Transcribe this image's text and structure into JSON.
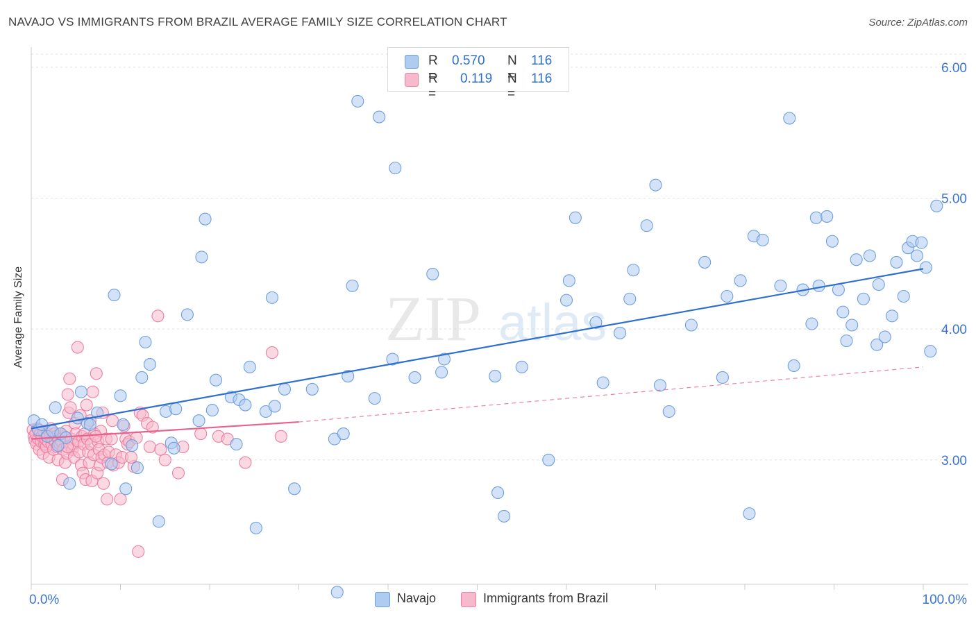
{
  "header": {
    "title": "NAVAJO VS IMMIGRANTS FROM BRAZIL AVERAGE FAMILY SIZE CORRELATION CHART",
    "source": "Source: ZipAtlas.com"
  },
  "legend_top": {
    "rows": [
      {
        "r_label": "R =",
        "r_value": "0.570",
        "n_label": "N =",
        "n_value": "116"
      },
      {
        "r_label": "R =",
        "r_value": "0.119",
        "n_label": "N =",
        "n_value": "116"
      }
    ]
  },
  "legend_bottom": {
    "navajo": "Navajo",
    "brazil": "Immigrants from Brazil"
  },
  "colors": {
    "navajo_fill": "#aecbf0",
    "navajo_stroke": "#6d9fe0",
    "navajo_line": "#2d6fd0",
    "brazil_fill": "#f7b9cc",
    "brazil_stroke": "#ec7fa3",
    "brazil_line": "#e8608e",
    "tick_label": "#3b73d1",
    "grid": "#e0e0e0"
  },
  "chart_data": {
    "type": "scatter",
    "title": "NAVAJO VS IMMIGRANTS FROM BRAZIL AVERAGE FAMILY SIZE CORRELATION CHART",
    "xlabel": "",
    "ylabel": "Average Family Size",
    "xlim": [
      0,
      100
    ],
    "ylim": [
      2.05,
      6.1
    ],
    "x_tick_labels": {
      "0": "0.0%",
      "100": "100.0%"
    },
    "y_ticks": [
      3.0,
      4.0,
      5.0,
      6.0
    ],
    "y_tick_labels": [
      "3.00",
      "4.00",
      "5.00",
      "6.00"
    ],
    "watermark": "ZIPatlas",
    "series": [
      {
        "name": "Navajo",
        "r": 0.57,
        "n": 116,
        "trend": {
          "x": [
            0,
            100
          ],
          "y": [
            3.24,
            4.46
          ]
        },
        "points": [
          [
            0.3,
            3.3
          ],
          [
            0.8,
            3.23
          ],
          [
            1.2,
            3.27
          ],
          [
            1.8,
            3.18
          ],
          [
            2.4,
            3.22
          ],
          [
            2.7,
            3.4
          ],
          [
            3.3,
            3.2
          ],
          [
            3.9,
            3.17
          ],
          [
            4.3,
            2.82
          ],
          [
            5.2,
            3.32
          ],
          [
            5.6,
            3.52
          ],
          [
            6.3,
            3.28
          ],
          [
            6.6,
            3.27
          ],
          [
            7.4,
            3.36
          ],
          [
            9.0,
            2.97
          ],
          [
            9.3,
            4.26
          ],
          [
            10.0,
            3.49
          ],
          [
            10.3,
            3.27
          ],
          [
            10.6,
            2.78
          ],
          [
            11.3,
            3.11
          ],
          [
            11.9,
            2.94
          ],
          [
            12.4,
            3.63
          ],
          [
            12.8,
            3.9
          ],
          [
            13.3,
            3.73
          ],
          [
            14.3,
            2.53
          ],
          [
            15.1,
            3.37
          ],
          [
            15.7,
            3.13
          ],
          [
            16.2,
            3.39
          ],
          [
            17.5,
            4.11
          ],
          [
            18.8,
            3.3
          ],
          [
            19.1,
            4.55
          ],
          [
            19.5,
            4.84
          ],
          [
            20.3,
            3.38
          ],
          [
            20.7,
            3.61
          ],
          [
            22.4,
            3.48
          ],
          [
            23.0,
            3.12
          ],
          [
            23.3,
            3.46
          ],
          [
            24.0,
            3.42
          ],
          [
            24.5,
            3.71
          ],
          [
            25.2,
            2.48
          ],
          [
            26.3,
            3.37
          ],
          [
            27.0,
            4.24
          ],
          [
            27.3,
            3.41
          ],
          [
            28.4,
            3.54
          ],
          [
            29.5,
            2.78
          ],
          [
            31.5,
            3.54
          ],
          [
            34.0,
            3.16
          ],
          [
            34.3,
            1.99
          ],
          [
            35.0,
            3.2
          ],
          [
            35.5,
            3.64
          ],
          [
            36.0,
            4.33
          ],
          [
            36.6,
            5.74
          ],
          [
            38.5,
            3.47
          ],
          [
            39.0,
            5.62
          ],
          [
            40.5,
            3.77
          ],
          [
            40.8,
            5.23
          ],
          [
            43.0,
            3.63
          ],
          [
            45.0,
            4.42
          ],
          [
            46.0,
            3.67
          ],
          [
            46.3,
            3.77
          ],
          [
            52.0,
            3.64
          ],
          [
            52.3,
            2.75
          ],
          [
            53.0,
            2.57
          ],
          [
            55.0,
            3.71
          ],
          [
            58.0,
            3.0
          ],
          [
            60.0,
            4.22
          ],
          [
            60.3,
            4.37
          ],
          [
            61.0,
            4.85
          ],
          [
            63.3,
            4.05
          ],
          [
            64.1,
            3.59
          ],
          [
            66.0,
            3.97
          ],
          [
            67.1,
            4.23
          ],
          [
            67.5,
            4.45
          ],
          [
            69.0,
            4.79
          ],
          [
            70.0,
            5.1
          ],
          [
            70.5,
            3.57
          ],
          [
            71.5,
            3.37
          ],
          [
            74.0,
            4.03
          ],
          [
            75.5,
            4.51
          ],
          [
            77.5,
            3.63
          ],
          [
            78.0,
            4.25
          ],
          [
            79.5,
            4.37
          ],
          [
            80.5,
            2.59
          ],
          [
            81.0,
            4.71
          ],
          [
            82.0,
            4.68
          ],
          [
            84.0,
            4.33
          ],
          [
            85.0,
            5.61
          ],
          [
            85.5,
            3.72
          ],
          [
            86.5,
            4.3
          ],
          [
            87.5,
            4.04
          ],
          [
            88.0,
            4.85
          ],
          [
            88.3,
            4.33
          ],
          [
            89.2,
            4.86
          ],
          [
            89.8,
            4.67
          ],
          [
            90.5,
            4.3
          ],
          [
            91.0,
            4.13
          ],
          [
            91.4,
            3.91
          ],
          [
            92.0,
            4.03
          ],
          [
            92.5,
            4.53
          ],
          [
            93.3,
            4.23
          ],
          [
            94.0,
            4.56
          ],
          [
            94.8,
            3.88
          ],
          [
            95.0,
            4.34
          ],
          [
            95.7,
            3.94
          ],
          [
            96.5,
            4.1
          ],
          [
            97.0,
            4.51
          ],
          [
            97.8,
            4.25
          ],
          [
            98.3,
            4.62
          ],
          [
            98.8,
            4.67
          ],
          [
            99.3,
            4.56
          ],
          [
            99.8,
            4.66
          ],
          [
            100.3,
            4.47
          ],
          [
            100.8,
            3.83
          ],
          [
            101.5,
            4.94
          ],
          [
            3.0,
            3.11
          ],
          [
            16.0,
            3.09
          ]
        ]
      },
      {
        "name": "Immigrants from Brazil",
        "r": 0.119,
        "n": 116,
        "trend": {
          "x": [
            0,
            30
          ],
          "y": [
            3.16,
            3.29
          ],
          "dash_x": [
            30,
            100
          ],
          "dash_y": [
            3.29,
            3.71
          ]
        },
        "points": [
          [
            0.2,
            3.23
          ],
          [
            0.3,
            3.18
          ],
          [
            0.4,
            3.15
          ],
          [
            0.5,
            3.2
          ],
          [
            0.6,
            3.12
          ],
          [
            0.7,
            3.24
          ],
          [
            0.8,
            3.16
          ],
          [
            0.9,
            3.08
          ],
          [
            1.0,
            3.2
          ],
          [
            1.1,
            3.14
          ],
          [
            1.2,
            3.18
          ],
          [
            1.3,
            3.05
          ],
          [
            1.4,
            3.22
          ],
          [
            1.5,
            3.12
          ],
          [
            1.6,
            3.16
          ],
          [
            1.7,
            3.1
          ],
          [
            1.8,
            3.2
          ],
          [
            1.9,
            3.14
          ],
          [
            2.0,
            3.02
          ],
          [
            2.1,
            3.18
          ],
          [
            2.2,
            3.24
          ],
          [
            2.3,
            3.12
          ],
          [
            2.4,
            3.16
          ],
          [
            2.5,
            3.08
          ],
          [
            2.6,
            3.2
          ],
          [
            2.7,
            3.14
          ],
          [
            2.8,
            3.18
          ],
          [
            2.9,
            3.1
          ],
          [
            3.0,
            3.0
          ],
          [
            3.1,
            3.16
          ],
          [
            3.2,
            3.12
          ],
          [
            3.3,
            3.2
          ],
          [
            3.4,
            3.14
          ],
          [
            3.5,
            2.85
          ],
          [
            3.6,
            3.08
          ],
          [
            3.7,
            3.18
          ],
          [
            3.8,
            2.98
          ],
          [
            3.9,
            3.22
          ],
          [
            4.0,
            3.05
          ],
          [
            4.1,
            3.5
          ],
          [
            4.2,
            3.36
          ],
          [
            4.3,
            3.62
          ],
          [
            4.4,
            3.4
          ],
          [
            4.5,
            3.16
          ],
          [
            4.6,
            3.08
          ],
          [
            4.7,
            3.12
          ],
          [
            4.8,
            3.02
          ],
          [
            4.9,
            3.28
          ],
          [
            5.0,
            3.2
          ],
          [
            5.2,
            3.86
          ],
          [
            5.3,
            3.14
          ],
          [
            5.4,
            3.06
          ],
          [
            5.5,
            3.34
          ],
          [
            5.6,
            2.96
          ],
          [
            5.7,
            3.18
          ],
          [
            5.8,
            2.9
          ],
          [
            5.9,
            3.12
          ],
          [
            6.0,
            3.2
          ],
          [
            6.1,
            2.85
          ],
          [
            6.2,
            3.42
          ],
          [
            6.3,
            3.16
          ],
          [
            6.4,
            3.06
          ],
          [
            6.5,
            2.98
          ],
          [
            6.6,
            3.3
          ],
          [
            6.7,
            3.12
          ],
          [
            6.8,
            2.84
          ],
          [
            6.9,
            3.52
          ],
          [
            7.0,
            3.04
          ],
          [
            7.1,
            3.2
          ],
          [
            7.3,
            3.66
          ],
          [
            7.4,
            2.9
          ],
          [
            7.5,
            3.14
          ],
          [
            7.6,
            3.08
          ],
          [
            7.7,
            2.96
          ],
          [
            7.8,
            3.22
          ],
          [
            7.9,
            3.02
          ],
          [
            8.0,
            3.36
          ],
          [
            8.1,
            2.82
          ],
          [
            8.2,
            3.04
          ],
          [
            8.4,
            3.16
          ],
          [
            8.5,
            2.7
          ],
          [
            8.6,
            2.98
          ],
          [
            8.7,
            3.06
          ],
          [
            9.0,
            3.16
          ],
          [
            9.2,
            2.96
          ],
          [
            9.5,
            3.04
          ],
          [
            9.8,
            2.98
          ],
          [
            10.0,
            2.7
          ],
          [
            10.2,
            3.02
          ],
          [
            10.4,
            3.26
          ],
          [
            10.6,
            3.16
          ],
          [
            10.8,
            3.12
          ],
          [
            11.0,
            3.14
          ],
          [
            11.5,
            2.95
          ],
          [
            11.8,
            3.17
          ],
          [
            12.0,
            2.3
          ],
          [
            12.2,
            3.36
          ],
          [
            12.5,
            3.34
          ],
          [
            13.0,
            3.28
          ],
          [
            13.3,
            3.1
          ],
          [
            13.6,
            3.25
          ],
          [
            14.2,
            4.1
          ],
          [
            14.5,
            3.08
          ],
          [
            15.0,
            3.0
          ],
          [
            16.5,
            2.9
          ],
          [
            17.0,
            3.1
          ],
          [
            19.0,
            3.2
          ],
          [
            21.0,
            3.18
          ],
          [
            22.0,
            3.16
          ],
          [
            24.0,
            2.98
          ],
          [
            27.0,
            3.82
          ],
          [
            28.0,
            3.18
          ],
          [
            4.05,
            3.1
          ],
          [
            7.25,
            3.18
          ],
          [
            9.1,
            3.3
          ],
          [
            11.2,
            3.02
          ]
        ]
      }
    ]
  }
}
